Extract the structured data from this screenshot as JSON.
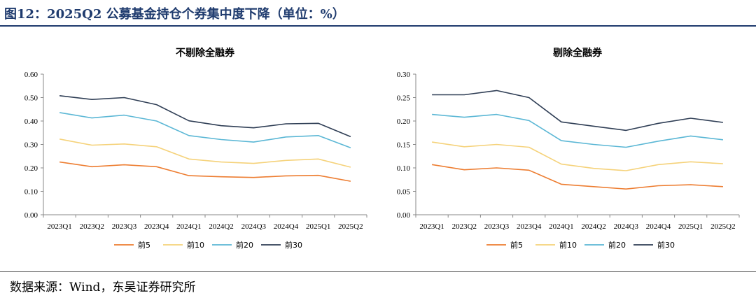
{
  "figure": {
    "title": "图12：2025Q2 公募基金持仓个券集中度下降（单位：%）",
    "source": "数据来源：Wind，东吴证券研究所"
  },
  "colors": {
    "top5": "#ed7d31",
    "top10": "#f5d27a",
    "top20": "#5bb7d5",
    "top30": "#2f3e55"
  },
  "chart_data": [
    {
      "type": "line",
      "title": "不剔除全融券",
      "categories": [
        "2023Q1",
        "2023Q2",
        "2023Q3",
        "2023Q4",
        "2024Q1",
        "2024Q2",
        "2024Q3",
        "2024Q4",
        "2025Q1",
        "2025Q2"
      ],
      "ylim": [
        0,
        0.6
      ],
      "yticks": [
        "0.00",
        "0.10",
        "0.20",
        "0.30",
        "0.40",
        "0.50",
        "0.60"
      ],
      "legend_position": "bottom",
      "grid": false,
      "series": [
        {
          "name": "前5",
          "color": "#ed7d31",
          "values": [
            0.225,
            0.205,
            0.213,
            0.205,
            0.167,
            0.162,
            0.159,
            0.166,
            0.168,
            0.143
          ]
        },
        {
          "name": "前10",
          "color": "#f5d27a",
          "values": [
            0.323,
            0.297,
            0.302,
            0.29,
            0.238,
            0.225,
            0.219,
            0.232,
            0.238,
            0.203
          ]
        },
        {
          "name": "前20",
          "color": "#5bb7d5",
          "values": [
            0.436,
            0.413,
            0.425,
            0.4,
            0.338,
            0.321,
            0.31,
            0.332,
            0.338,
            0.286
          ]
        },
        {
          "name": "前30",
          "color": "#2f3e55",
          "values": [
            0.508,
            0.492,
            0.5,
            0.47,
            0.401,
            0.38,
            0.371,
            0.388,
            0.39,
            0.333
          ]
        }
      ]
    },
    {
      "type": "line",
      "title": "剔除全融券",
      "categories": [
        "2023Q1",
        "2023Q2",
        "2023Q3",
        "2023Q4",
        "2024Q1",
        "2024Q2",
        "2024Q3",
        "2024Q4",
        "2025Q1",
        "2025Q2"
      ],
      "ylim": [
        0,
        0.3
      ],
      "yticks": [
        "0.00",
        "0.05",
        "0.10",
        "0.15",
        "0.20",
        "0.25",
        "0.30"
      ],
      "legend_position": "bottom",
      "grid": false,
      "series": [
        {
          "name": "前5",
          "color": "#ed7d31",
          "values": [
            0.107,
            0.096,
            0.1,
            0.095,
            0.065,
            0.06,
            0.055,
            0.062,
            0.064,
            0.06
          ]
        },
        {
          "name": "前10",
          "color": "#f5d27a",
          "values": [
            0.155,
            0.145,
            0.15,
            0.144,
            0.108,
            0.099,
            0.094,
            0.107,
            0.113,
            0.109
          ]
        },
        {
          "name": "前20",
          "color": "#5bb7d5",
          "values": [
            0.214,
            0.208,
            0.214,
            0.201,
            0.158,
            0.15,
            0.144,
            0.157,
            0.168,
            0.16
          ]
        },
        {
          "name": "前30",
          "color": "#2f3e55",
          "values": [
            0.256,
            0.256,
            0.265,
            0.25,
            0.198,
            0.189,
            0.18,
            0.195,
            0.206,
            0.197
          ]
        }
      ]
    }
  ]
}
